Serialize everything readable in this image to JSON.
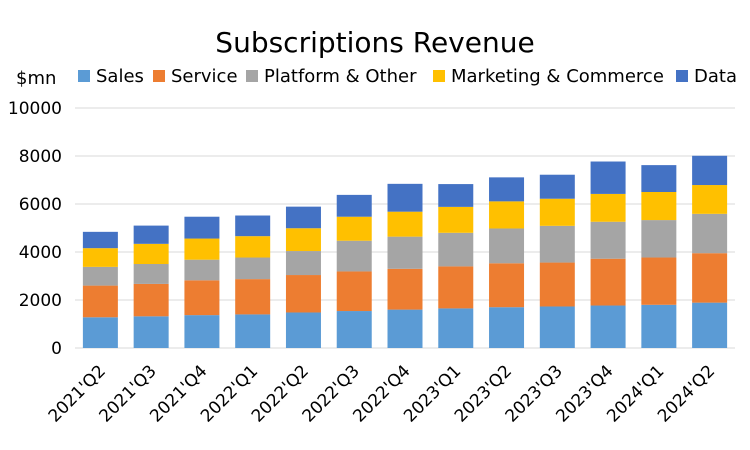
{
  "chart_data": {
    "type": "bar",
    "stacked": true,
    "title": "Subscriptions Revenue",
    "ylabel": "$mn",
    "xlabel": "",
    "ylim": [
      0,
      10000
    ],
    "yticks": [
      "0",
      "2000",
      "4000",
      "6000",
      "8000",
      "10000"
    ],
    "grid": true,
    "legend_position": "top",
    "categories": [
      "2021'Q2",
      "2021'Q3",
      "2021'Q4",
      "2022'Q1",
      "2022'Q2",
      "2022'Q3",
      "2022'Q4",
      "2023'Q1",
      "2023'Q2",
      "2023'Q3",
      "2023'Q4",
      "2024'Q1",
      "2024'Q2"
    ],
    "series": [
      {
        "name": "Sales",
        "color": "#5b9bd5",
        "values": [
          1280,
          1320,
          1370,
          1400,
          1480,
          1540,
          1600,
          1650,
          1700,
          1730,
          1770,
          1800,
          1890
        ]
      },
      {
        "name": "Service",
        "color": "#ed7d31",
        "values": [
          1320,
          1350,
          1450,
          1470,
          1560,
          1650,
          1700,
          1750,
          1830,
          1830,
          1950,
          1970,
          2060
        ]
      },
      {
        "name": "Platform & Other",
        "color": "#a5a5a5",
        "values": [
          780,
          830,
          860,
          900,
          1000,
          1280,
          1340,
          1400,
          1450,
          1530,
          1540,
          1560,
          1640
        ]
      },
      {
        "name": "Marketing & Commerce",
        "color": "#ffc000",
        "values": [
          780,
          840,
          880,
          890,
          950,
          1000,
          1040,
          1080,
          1130,
          1130,
          1160,
          1170,
          1200
        ]
      },
      {
        "name": "Data",
        "color": "#4472c4",
        "values": [
          680,
          760,
          910,
          860,
          900,
          910,
          1160,
          950,
          1000,
          1000,
          1350,
          1120,
          1220
        ]
      }
    ]
  }
}
